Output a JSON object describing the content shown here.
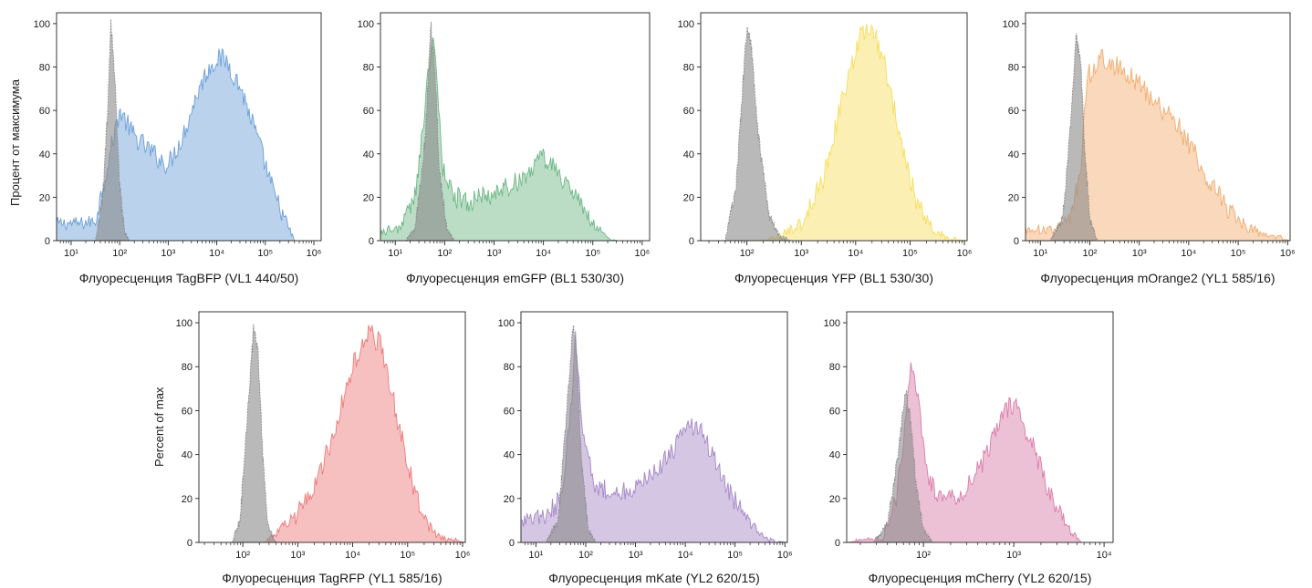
{
  "colors": {
    "control": "#8a8a8a",
    "tagbfp": "#5b93d1",
    "emgfp": "#5cae76",
    "yfp": "#f5da4a",
    "morange2": "#f0a15e",
    "tagrfp": "#ea6a6a",
    "mkate": "#9a78bf",
    "mcherry": "#d46b9c"
  },
  "chart_data": [
    {
      "type": "area",
      "xlabel": "Флуоресценция TagBFP (VL1 440/50)",
      "ylabel": "Процент от максимума",
      "xscale": "log",
      "xlim_exp": [
        0.7,
        6.15
      ],
      "xticks_exp": [
        1,
        2,
        3,
        4,
        5,
        6
      ],
      "ylim": [
        0,
        105
      ],
      "yticks": [
        0,
        20,
        40,
        60,
        80,
        100
      ],
      "series": [
        {
          "role": "control",
          "color_key": "control",
          "x": [
            0.7,
            1.5,
            1.65,
            1.75,
            1.82,
            1.9,
            2.0,
            2.1,
            2.2,
            2.3
          ],
          "y": [
            0,
            0,
            20,
            60,
            100,
            75,
            25,
            4,
            0,
            0
          ]
        },
        {
          "role": "sample",
          "color_key": "tagbfp",
          "x": [
            0.7,
            1.2,
            1.5,
            1.8,
            2.0,
            2.3,
            2.6,
            2.8,
            3.0,
            3.3,
            3.6,
            3.8,
            4.0,
            4.2,
            4.5,
            4.8,
            5.2,
            5.5,
            5.6
          ],
          "y": [
            8,
            8,
            9,
            40,
            60,
            48,
            42,
            38,
            35,
            48,
            68,
            78,
            84,
            83,
            70,
            50,
            20,
            5,
            0
          ]
        }
      ]
    },
    {
      "type": "area",
      "xlabel": "Флуоресценция emGFP (BL1 530/30)",
      "xscale": "log",
      "xlim_exp": [
        0.7,
        6.15
      ],
      "xticks_exp": [
        1,
        2,
        3,
        4,
        5,
        6
      ],
      "ylim": [
        0,
        105
      ],
      "yticks": [
        0,
        20,
        40,
        60,
        80,
        100
      ],
      "series": [
        {
          "role": "control",
          "color_key": "control",
          "x": [
            0.7,
            1.2,
            1.4,
            1.6,
            1.72,
            1.8,
            1.9,
            2.05,
            2.2,
            2.4
          ],
          "y": [
            0,
            0,
            5,
            45,
            100,
            80,
            30,
            5,
            0,
            0
          ]
        },
        {
          "role": "sample",
          "color_key": "emgfp",
          "x": [
            0.7,
            1.1,
            1.4,
            1.6,
            1.75,
            1.82,
            1.95,
            2.2,
            2.5,
            2.8,
            3.0,
            3.4,
            3.8,
            4.0,
            4.3,
            4.7,
            5.0,
            5.3,
            5.5
          ],
          "y": [
            4,
            6,
            20,
            60,
            96,
            80,
            35,
            20,
            18,
            20,
            22,
            26,
            34,
            38,
            32,
            18,
            8,
            1,
            0
          ]
        }
      ]
    },
    {
      "type": "area",
      "xlabel": "Флуоресценция YFP (BL1 530/30)",
      "xscale": "log",
      "xlim_exp": [
        1.15,
        6.05
      ],
      "xticks_exp": [
        2,
        3,
        4,
        5,
        6
      ],
      "ylim": [
        0,
        105
      ],
      "yticks": [
        0,
        20,
        40,
        60,
        80,
        100
      ],
      "series": [
        {
          "role": "control",
          "color_key": "control",
          "x": [
            1.15,
            1.6,
            1.8,
            1.92,
            2.0,
            2.08,
            2.2,
            2.4,
            2.6,
            2.8
          ],
          "y": [
            0,
            0,
            25,
            70,
            98,
            90,
            50,
            12,
            2,
            0
          ]
        },
        {
          "role": "sample",
          "color_key": "yfp",
          "x": [
            1.15,
            2.3,
            2.6,
            3.0,
            3.4,
            3.8,
            4.1,
            4.3,
            4.5,
            4.8,
            5.1,
            5.4,
            5.7,
            6.05
          ],
          "y": [
            0,
            0,
            2,
            8,
            28,
            70,
            95,
            98,
            85,
            50,
            20,
            6,
            1,
            0
          ]
        }
      ]
    },
    {
      "type": "area",
      "xlabel": "Флуоресценция mOrange2 (YL1 585/16)",
      "xscale": "log",
      "xlim_exp": [
        0.7,
        6.05
      ],
      "xticks_exp": [
        1,
        2,
        3,
        4,
        5,
        6
      ],
      "ylim": [
        0,
        105
      ],
      "yticks": [
        0,
        20,
        40,
        60,
        80,
        100
      ],
      "series": [
        {
          "role": "control",
          "color_key": "control",
          "x": [
            0.7,
            1.2,
            1.45,
            1.6,
            1.72,
            1.82,
            1.9,
            2.0,
            2.15,
            2.4
          ],
          "y": [
            0,
            0,
            10,
            50,
            95,
            80,
            40,
            10,
            0,
            0
          ]
        },
        {
          "role": "sample",
          "color_key": "morange2",
          "x": [
            0.7,
            1.3,
            1.6,
            1.8,
            1.95,
            2.2,
            2.6,
            3.0,
            3.4,
            3.8,
            4.0,
            4.4,
            4.8,
            5.2,
            5.6,
            5.9,
            6.05
          ],
          "y": [
            5,
            5,
            10,
            30,
            75,
            85,
            80,
            72,
            62,
            52,
            45,
            28,
            14,
            6,
            2,
            1,
            0
          ]
        }
      ]
    },
    {
      "type": "area",
      "xlabel": "Флуоресценция TagRFP (YL1 585/16)",
      "ylabel": "Percent of max",
      "xscale": "log",
      "xlim_exp": [
        1.2,
        6.05
      ],
      "xticks_exp": [
        2,
        3,
        4,
        5,
        6
      ],
      "ylim": [
        0,
        105
      ],
      "yticks": [
        0,
        20,
        40,
        60,
        80,
        100
      ],
      "series": [
        {
          "role": "control",
          "color_key": "control",
          "x": [
            1.2,
            1.8,
            1.95,
            2.1,
            2.2,
            2.28,
            2.36,
            2.45,
            2.6,
            2.8
          ],
          "y": [
            0,
            0,
            10,
            65,
            98,
            85,
            40,
            8,
            0,
            0
          ]
        },
        {
          "role": "sample",
          "color_key": "tagrfp",
          "x": [
            1.2,
            2.4,
            2.6,
            2.9,
            3.2,
            3.6,
            4.0,
            4.3,
            4.5,
            4.7,
            5.0,
            5.3,
            5.6,
            6.05
          ],
          "y": [
            0,
            0,
            4,
            10,
            20,
            45,
            80,
            96,
            90,
            70,
            35,
            10,
            2,
            0
          ]
        }
      ]
    },
    {
      "type": "area",
      "xlabel": "Флуоресценция mKate (YL2 620/15)",
      "xscale": "log",
      "xlim_exp": [
        0.7,
        6.05
      ],
      "xticks_exp": [
        1,
        2,
        3,
        4,
        5,
        6
      ],
      "ylim": [
        0,
        105
      ],
      "yticks": [
        0,
        20,
        40,
        60,
        80,
        100
      ],
      "series": [
        {
          "role": "control",
          "color_key": "control",
          "x": [
            0.7,
            1.2,
            1.45,
            1.62,
            1.75,
            1.82,
            1.92,
            2.05,
            2.2,
            2.4
          ],
          "y": [
            0,
            0,
            10,
            60,
            100,
            85,
            35,
            6,
            0,
            0
          ]
        },
        {
          "role": "sample",
          "color_key": "mkate",
          "x": [
            0.7,
            1.2,
            1.5,
            1.7,
            1.8,
            1.95,
            2.2,
            2.6,
            3.0,
            3.4,
            3.8,
            4.2,
            4.5,
            4.8,
            5.2,
            5.5,
            5.7,
            6.05
          ],
          "y": [
            10,
            12,
            20,
            60,
            95,
            50,
            26,
            22,
            25,
            32,
            44,
            55,
            42,
            25,
            12,
            4,
            1,
            0
          ]
        }
      ]
    },
    {
      "type": "area",
      "xlabel": "Флуоресценция mCherry (YL2 620/15)",
      "xscale": "log",
      "xlim_exp": [
        1.15,
        4.1
      ],
      "xticks_exp": [
        2,
        3,
        4
      ],
      "ylim": [
        0,
        105
      ],
      "yticks": [
        0,
        20,
        40,
        60,
        80,
        100
      ],
      "series": [
        {
          "role": "control",
          "color_key": "control",
          "x": [
            1.15,
            1.45,
            1.6,
            1.72,
            1.8,
            1.86,
            1.92,
            2.0,
            2.1,
            2.3
          ],
          "y": [
            0,
            0,
            8,
            40,
            70,
            55,
            25,
            6,
            0,
            0
          ]
        },
        {
          "role": "sample",
          "color_key": "mcherry",
          "x": [
            1.15,
            1.55,
            1.7,
            1.8,
            1.88,
            1.95,
            2.05,
            2.2,
            2.4,
            2.6,
            2.8,
            2.95,
            3.05,
            3.2,
            3.4,
            3.6,
            3.75,
            4.1
          ],
          "y": [
            0,
            2,
            20,
            55,
            85,
            60,
            30,
            20,
            22,
            32,
            50,
            62,
            60,
            45,
            22,
            6,
            0,
            0
          ]
        }
      ]
    }
  ]
}
